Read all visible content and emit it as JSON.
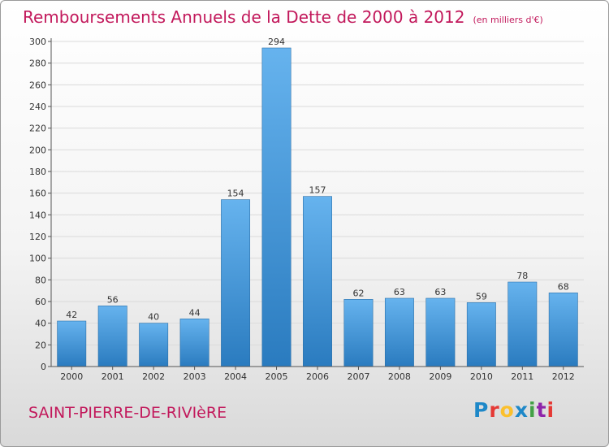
{
  "header": {
    "title": "Remboursements Annuels de la Dette de 2000 à 2012",
    "subtitle": "(en milliers d'€)"
  },
  "footer": {
    "town": "SAINT-PIERRE-DE-RIVIèRE",
    "logo_letters": [
      "P",
      "r",
      "o",
      "x",
      "i",
      "t",
      "i"
    ],
    "logo_colors": [
      "#1e88c8",
      "#e53935",
      "#fbc02d",
      "#1e88c8",
      "#43a047",
      "#8e24aa",
      "#e53935"
    ]
  },
  "chart_data": {
    "type": "bar",
    "categories": [
      "2000",
      "2001",
      "2002",
      "2003",
      "2004",
      "2005",
      "2006",
      "2007",
      "2008",
      "2009",
      "2010",
      "2011",
      "2012"
    ],
    "values": [
      42,
      56,
      40,
      44,
      154,
      294,
      157,
      62,
      63,
      63,
      59,
      78,
      68
    ],
    "ylim": [
      0,
      300
    ],
    "yticks": [
      0,
      20,
      40,
      60,
      80,
      100,
      120,
      140,
      160,
      180,
      200,
      220,
      240,
      260,
      280,
      300
    ],
    "grid": true,
    "bar_color_light": "#66b3ee",
    "bar_color_dark": "#2a7bbf"
  }
}
